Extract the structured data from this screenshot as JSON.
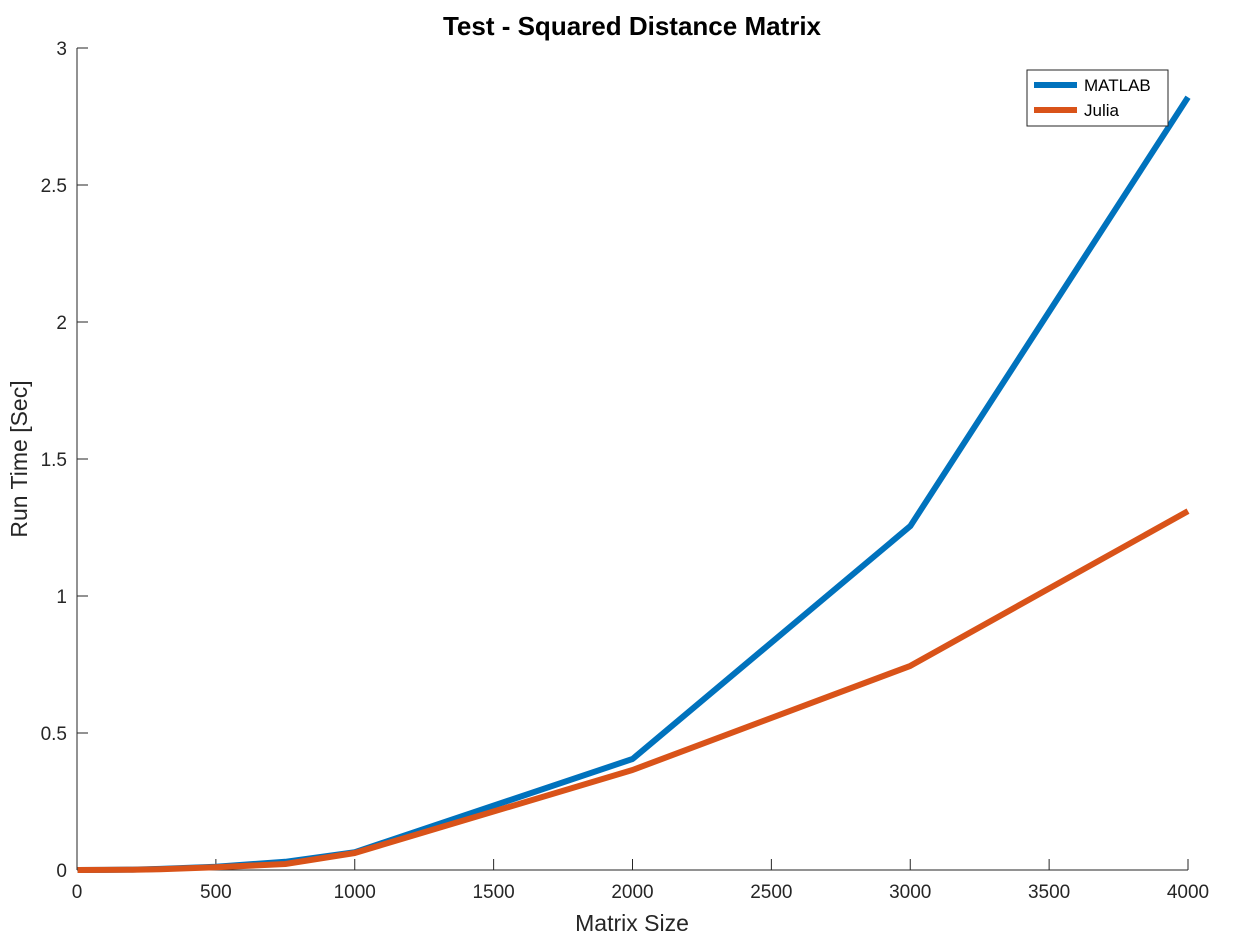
{
  "chart_data": {
    "type": "line",
    "title": "Test - Squared Distance Matrix",
    "xlabel": "Matrix Size",
    "ylabel": "Run Time  [Sec]",
    "xlim": [
      0,
      4000
    ],
    "ylim": [
      0,
      3
    ],
    "xticks": [
      0,
      500,
      1000,
      1500,
      2000,
      2500,
      3000,
      3500,
      4000
    ],
    "yticks": [
      0,
      0.5,
      1,
      1.5,
      2,
      2.5,
      3
    ],
    "xtick_labels": [
      "0",
      "500",
      "1000",
      "1500",
      "2000",
      "2500",
      "3000",
      "3500",
      "4000"
    ],
    "ytick_labels": [
      "0",
      "0.5",
      "1",
      "1.5",
      "2",
      "2.5",
      "3"
    ],
    "grid": false,
    "legend_position": "top-right",
    "series": [
      {
        "name": "MATLAB",
        "color": "#0072BD",
        "x": [
          2,
          100,
          200,
          300,
          500,
          750,
          1000,
          2000,
          3000,
          4000
        ],
        "y": [
          0.0001,
          0.0005,
          0.0015,
          0.004,
          0.012,
          0.03,
          0.065,
          0.405,
          1.255,
          2.82
        ]
      },
      {
        "name": "Julia",
        "color": "#D95319",
        "x": [
          2,
          100,
          200,
          300,
          500,
          750,
          1000,
          2000,
          3000,
          4000
        ],
        "y": [
          0.0001,
          0.0004,
          0.0012,
          0.003,
          0.01,
          0.022,
          0.062,
          0.365,
          0.745,
          1.31
        ]
      }
    ]
  }
}
